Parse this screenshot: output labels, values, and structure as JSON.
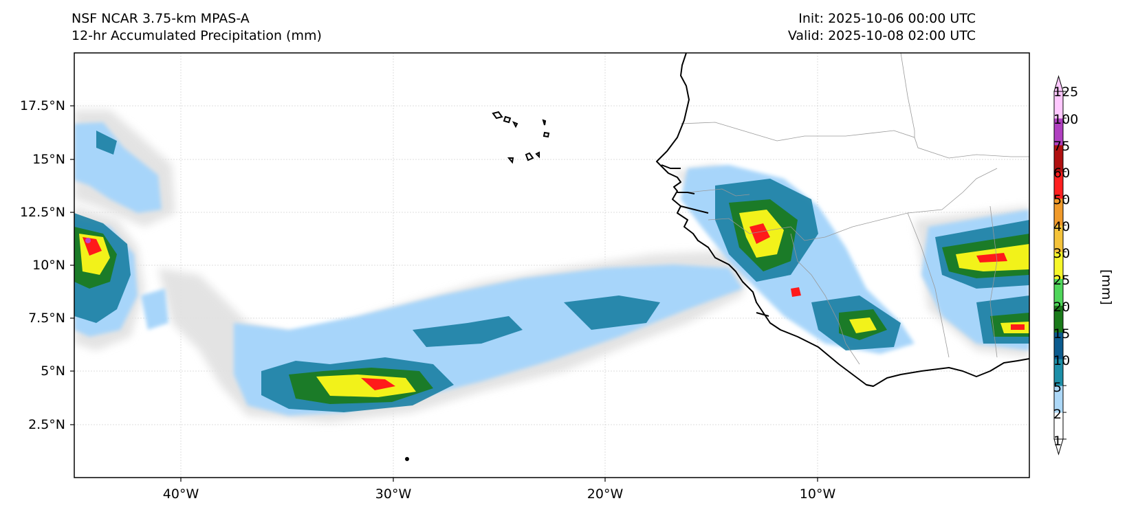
{
  "header": {
    "title_line1": "NSF NCAR 3.75-km MPAS-A",
    "title_line2": "12-hr Accumulated Precipitation (mm)",
    "init": "Init: 2025-10-06 00:00 UTC",
    "valid": "Valid: 2025-10-08 02:00 UTC"
  },
  "map": {
    "lon_range": [
      -45,
      0
    ],
    "lat_range": [
      0,
      20
    ],
    "lat_ticks": [
      "17.5°N",
      "15°N",
      "12.5°N",
      "10°N",
      "7.5°N",
      "5°N",
      "2.5°N"
    ],
    "lon_ticks": [
      "40°W",
      "30°W",
      "20°W",
      "10°W"
    ]
  },
  "colorbar": {
    "units": "[mm]",
    "levels": [
      "125",
      "100",
      "75",
      "60",
      "50",
      "40",
      "30",
      "25",
      "20",
      "15",
      "10",
      "5",
      "2",
      "1"
    ],
    "colors": [
      "#ffffff",
      "#add8f7",
      "#1d8fa8",
      "#0b5b8e",
      "#1a7a1a",
      "#4fd65a",
      "#f7f72a",
      "#f5c33a",
      "#f09a2a",
      "#ff2020",
      "#b01010",
      "#b040c0",
      "#ffc8ff"
    ],
    "extend": "both"
  },
  "colors": {
    "light_gray": "#e2e2e2",
    "light_blue": "#a7d5fa",
    "teal": "#1b7fa3",
    "dark_blue": "#0c5a8a",
    "green": "#1a7a1a",
    "light_green": "#5ad160",
    "yellow": "#f2f21a",
    "orange": "#f5a330",
    "red": "#ff1a1a",
    "dark_red": "#a81010",
    "magenta": "#c040c8"
  }
}
